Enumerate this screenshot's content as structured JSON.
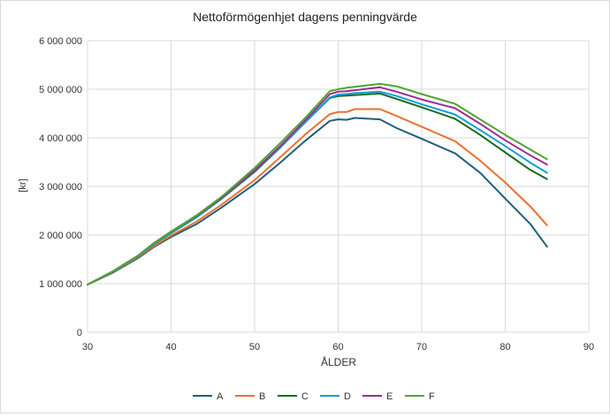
{
  "chart_data": {
    "type": "line",
    "title": "Nettoförmögenhjet dagens penningvärde",
    "xlabel": "ÅLDER",
    "ylabel": "[kr]",
    "xlim": [
      30,
      90
    ],
    "ylim": [
      0,
      6000000
    ],
    "x_ticks": [
      "30",
      "40",
      "50",
      "60",
      "70",
      "80",
      "90"
    ],
    "y_ticks": [
      "0",
      "1 000 000",
      "2 000 000",
      "3 000 000",
      "4 000 000",
      "5 000 000",
      "6 000 000"
    ],
    "grid": true,
    "legend_position": "bottom",
    "x": [
      30,
      33,
      36,
      38,
      40,
      43,
      46,
      50,
      53,
      56,
      59,
      60,
      61,
      62,
      65,
      67,
      70,
      74,
      77,
      80,
      83,
      85
    ],
    "series": [
      {
        "name": "A",
        "color": "#1f5f7a",
        "values": [
          980000,
          1220000,
          1520000,
          1760000,
          1960000,
          2220000,
          2560000,
          3050000,
          3480000,
          3930000,
          4350000,
          4380000,
          4370000,
          4410000,
          4380000,
          4200000,
          3980000,
          3680000,
          3280000,
          2750000,
          2230000,
          1760000
        ]
      },
      {
        "name": "B",
        "color": "#e97132",
        "values": [
          980000,
          1230000,
          1540000,
          1780000,
          1990000,
          2270000,
          2620000,
          3130000,
          3590000,
          4060000,
          4490000,
          4530000,
          4530000,
          4590000,
          4590000,
          4450000,
          4230000,
          3930000,
          3530000,
          3080000,
          2590000,
          2200000
        ]
      },
      {
        "name": "C",
        "color": "#196b24",
        "values": [
          980000,
          1240000,
          1560000,
          1820000,
          2040000,
          2360000,
          2740000,
          3300000,
          3790000,
          4310000,
          4820000,
          4860000,
          4870000,
          4880000,
          4910000,
          4800000,
          4630000,
          4390000,
          4060000,
          3700000,
          3340000,
          3150000
        ]
      },
      {
        "name": "D",
        "color": "#0f9ed5",
        "values": [
          980000,
          1240000,
          1560000,
          1820000,
          2050000,
          2370000,
          2750000,
          3320000,
          3800000,
          4310000,
          4830000,
          4890000,
          4900000,
          4920000,
          4950000,
          4860000,
          4690000,
          4480000,
          4160000,
          3830000,
          3490000,
          3280000
        ]
      },
      {
        "name": "E",
        "color": "#a02b93",
        "values": [
          980000,
          1250000,
          1570000,
          1840000,
          2070000,
          2390000,
          2760000,
          3330000,
          3820000,
          4350000,
          4900000,
          4950000,
          4960000,
          4980000,
          5040000,
          4950000,
          4790000,
          4610000,
          4290000,
          3950000,
          3640000,
          3450000
        ]
      },
      {
        "name": "F",
        "color": "#4ea72e",
        "values": [
          980000,
          1250000,
          1570000,
          1840000,
          2070000,
          2400000,
          2780000,
          3380000,
          3880000,
          4400000,
          4960000,
          5000000,
          5030000,
          5050000,
          5110000,
          5060000,
          4900000,
          4700000,
          4380000,
          4060000,
          3760000,
          3560000
        ]
      }
    ]
  }
}
